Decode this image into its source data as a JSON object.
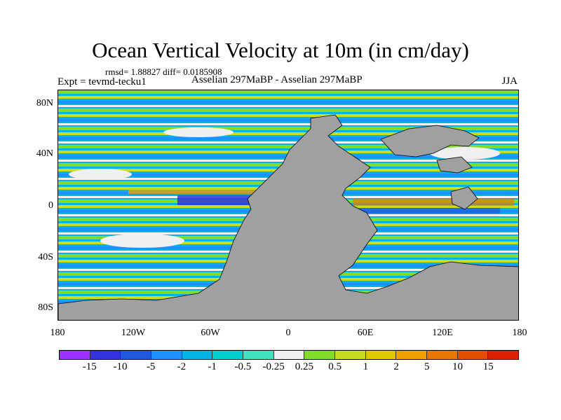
{
  "title": "Ocean Vertical Velocity at 10m (in cm/day)",
  "stats": "rmsd= 1.88827 diff= 0.0185908",
  "experiment": "Expt = tevmd-tecku1",
  "period_title": "Asselian 297MaBP - Asselian 297MaBP",
  "season": "JJA",
  "axes": {
    "y_labels": [
      "80N",
      "40N",
      "0",
      "40S",
      "80S"
    ],
    "x_labels": [
      "180",
      "120W",
      "60W",
      "0",
      "60E",
      "120E",
      "180"
    ]
  },
  "colorbar": {
    "labels": [
      "-15",
      "-10",
      "-5",
      "-2",
      "-1",
      "-0.5",
      "-0.25",
      "0.25",
      "0.5",
      "1",
      "2",
      "5",
      "10",
      "15"
    ],
    "colors": [
      "#9b30ff",
      "#3333dd",
      "#1e5adc",
      "#1e90ff",
      "#00b4e6",
      "#00ced1",
      "#40e0c0",
      "#f0f0f0",
      "#7fdc28",
      "#c8dc20",
      "#e0c800",
      "#f0a000",
      "#e87800",
      "#e05000",
      "#dd2200"
    ]
  },
  "colors": {
    "land": "#a0a0a0",
    "missing": "#ffffff"
  }
}
